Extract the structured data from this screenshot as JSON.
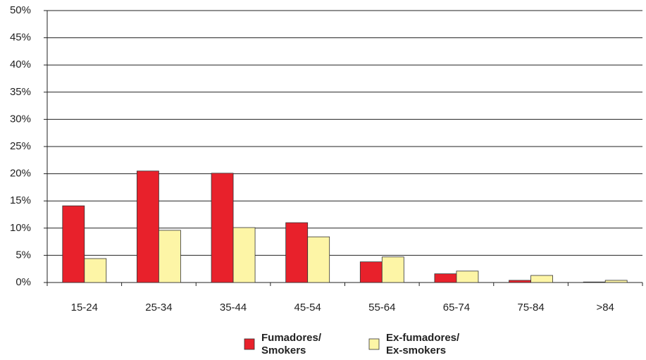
{
  "chart_data": {
    "type": "bar",
    "categories": [
      "15-24",
      "25-34",
      "35-44",
      "45-54",
      "55-64",
      "65-74",
      "75-84",
      ">84"
    ],
    "series": [
      {
        "name": "Fumadores/",
        "subname": "Smokers",
        "color": "#e8212b",
        "values": [
          14.1,
          20.5,
          20.1,
          11.0,
          3.8,
          1.6,
          0.4,
          0.1
        ]
      },
      {
        "name": "Ex-fumadores/",
        "subname": "Ex-smokers",
        "color": "#fdf5a6",
        "values": [
          4.4,
          9.6,
          10.1,
          8.4,
          4.7,
          2.1,
          1.3,
          0.4
        ]
      }
    ],
    "ylim": [
      0,
      50
    ],
    "yticks": [
      {
        "value": 0,
        "label": "0%"
      },
      {
        "value": 5,
        "label": "5%"
      },
      {
        "value": 10,
        "label": "10%"
      },
      {
        "value": 15,
        "label": "15%"
      },
      {
        "value": 20,
        "label": "20%"
      },
      {
        "value": 25,
        "label": "25%"
      },
      {
        "value": 30,
        "label": "30%"
      },
      {
        "value": 35,
        "label": "35%"
      },
      {
        "value": 40,
        "label": "40%"
      },
      {
        "value": 45,
        "label": "45%"
      },
      {
        "value": 50,
        "label": "50%"
      }
    ],
    "grid": true,
    "legend": "bottom",
    "legend_subcolor": "#138a7a"
  }
}
